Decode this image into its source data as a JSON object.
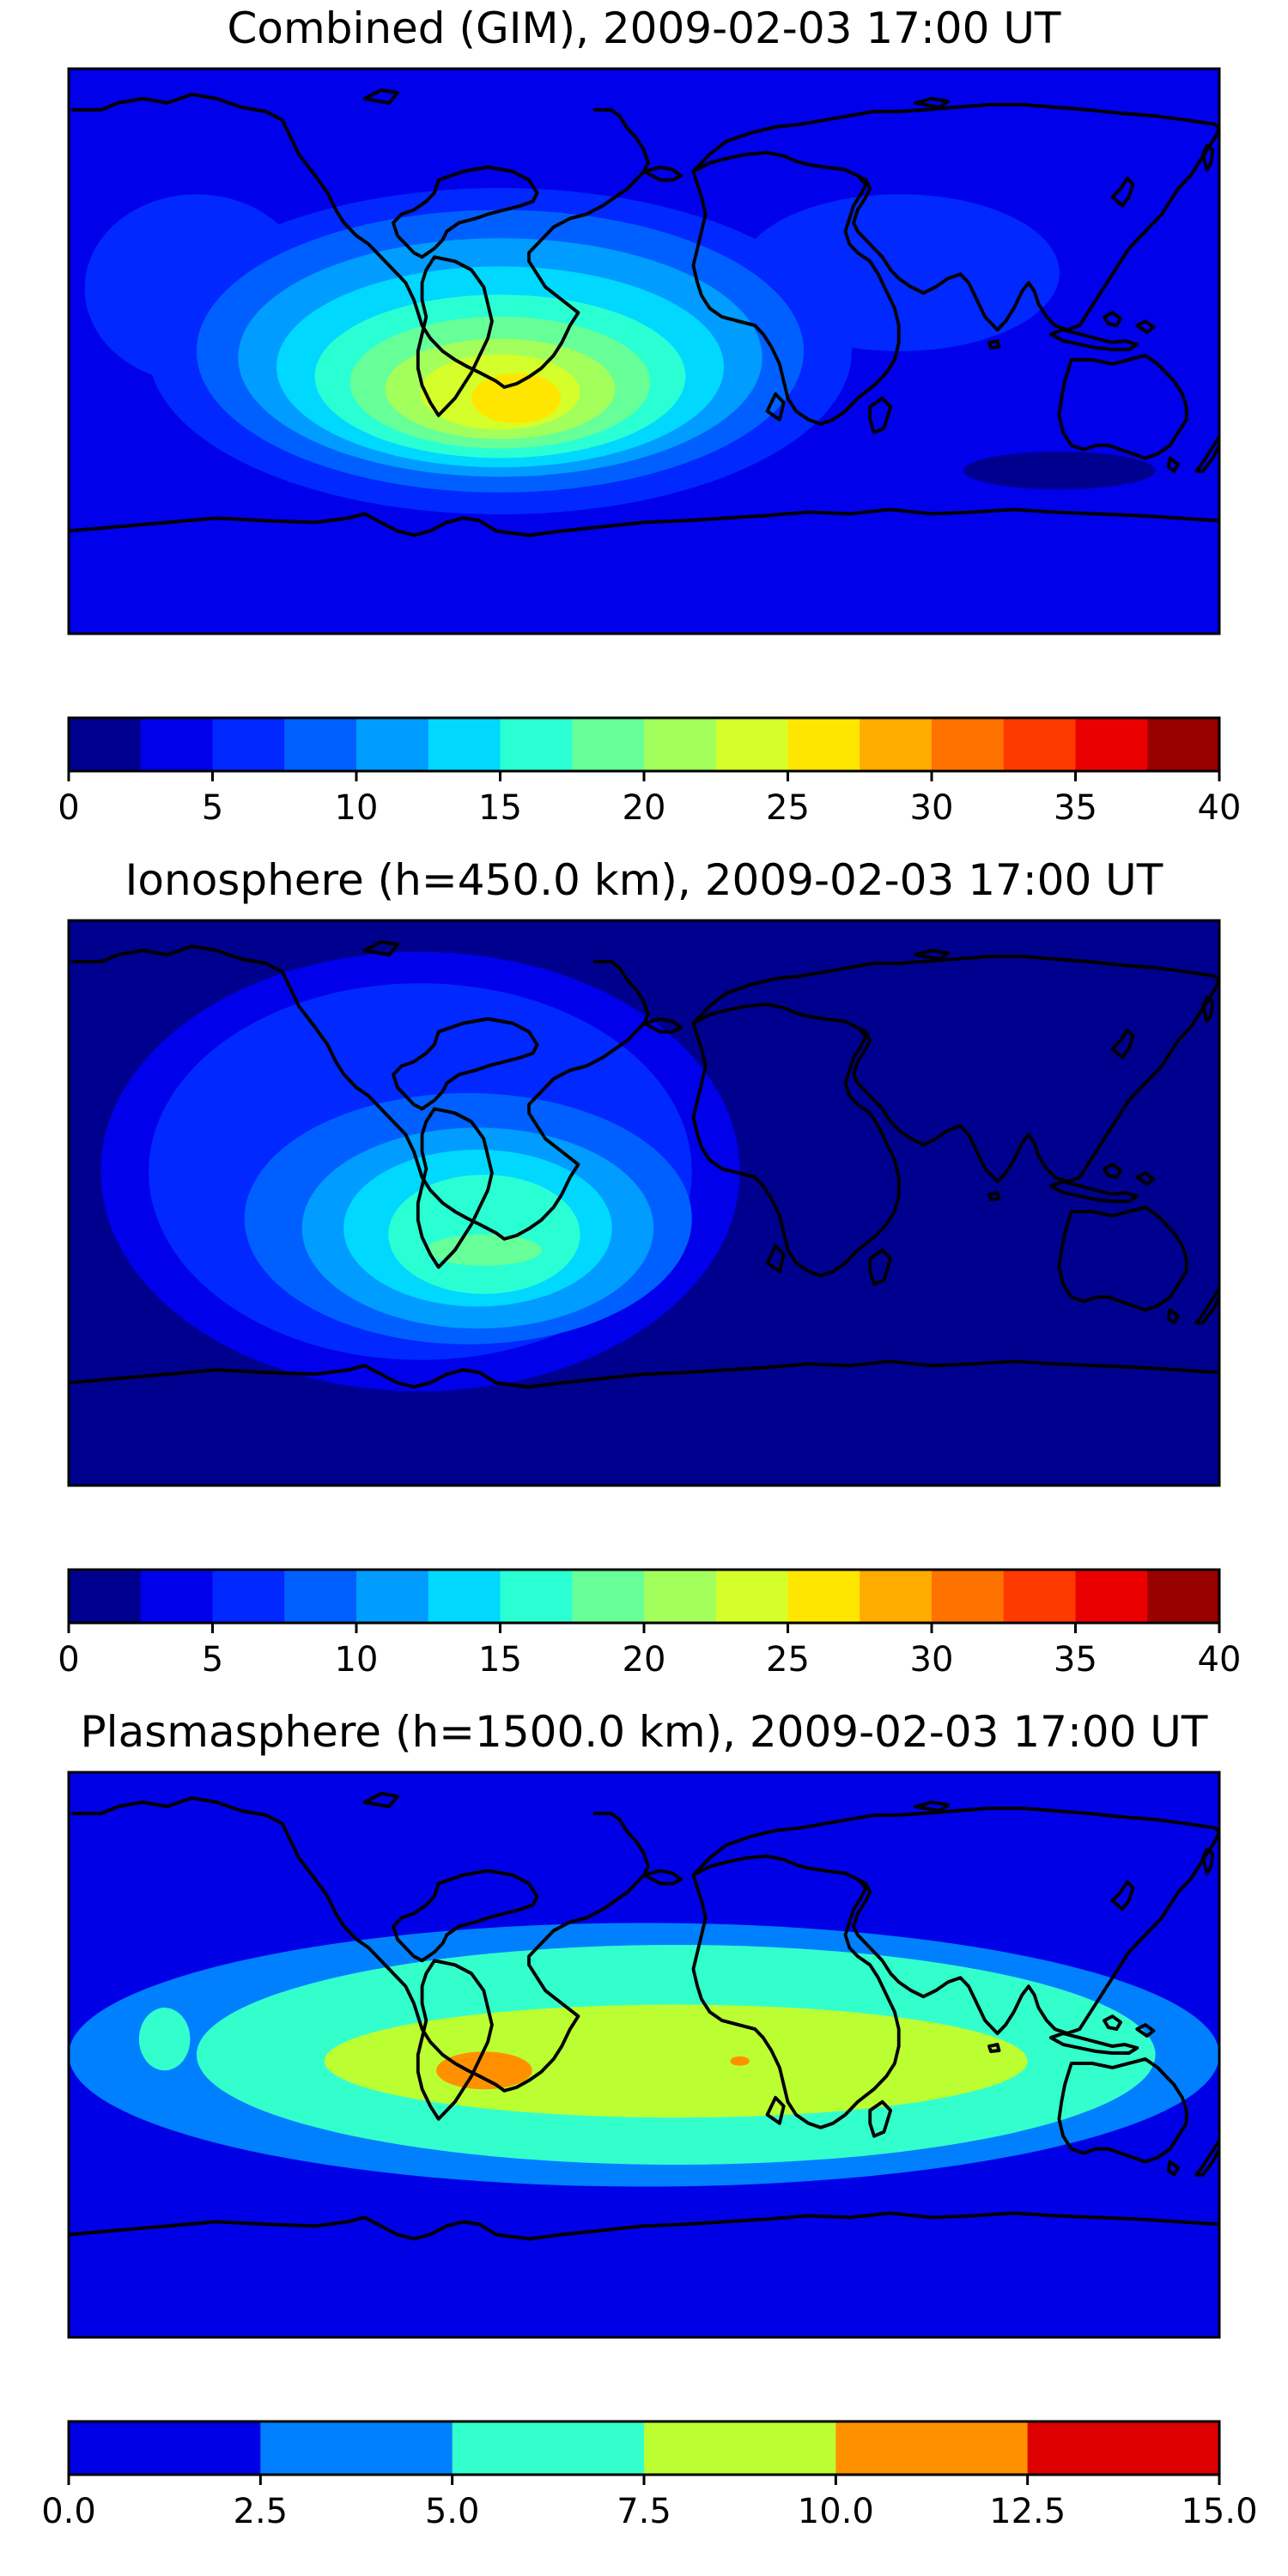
{
  "figure": {
    "panels": [
      {
        "title": "Combined (GIM), 2009-02-03 17:00 UT",
        "colormap": "jet",
        "colorbar": {
          "min": 0,
          "max": 40,
          "step": 2.5,
          "ticks": [
            "0",
            "5",
            "10",
            "15",
            "20",
            "25",
            "30",
            "35",
            "40"
          ],
          "colors": [
            "#00008f",
            "#0000ea",
            "#0028ff",
            "#0060ff",
            "#009cff",
            "#00d8ff",
            "#2affd4",
            "#66ff98",
            "#a2ff5c",
            "#d4ff2a",
            "#ffe600",
            "#ffab00",
            "#ff7200",
            "#ff3a00",
            "#ea0000",
            "#990000"
          ]
        },
        "background_level": 1,
        "features": [
          {
            "lon": -140,
            "lat": 20,
            "rx": 35,
            "ry": 30,
            "level": 2
          },
          {
            "lon": 80,
            "lat": 25,
            "rx": 50,
            "ry": 25,
            "level": 2
          },
          {
            "lon": -45,
            "lat": 0,
            "rx": 110,
            "ry": 52,
            "level": 2
          },
          {
            "lon": -45,
            "lat": 0,
            "rx": 95,
            "ry": 45,
            "level": 3
          },
          {
            "lon": -45,
            "lat": -2,
            "rx": 82,
            "ry": 38,
            "level": 4
          },
          {
            "lon": -45,
            "lat": -5,
            "rx": 70,
            "ry": 32,
            "level": 5
          },
          {
            "lon": -45,
            "lat": -8,
            "rx": 58,
            "ry": 26,
            "level": 6
          },
          {
            "lon": -45,
            "lat": -10,
            "rx": 47,
            "ry": 21,
            "level": 7
          },
          {
            "lon": -45,
            "lat": -12,
            "rx": 36,
            "ry": 16,
            "level": 8
          },
          {
            "lon": -45,
            "lat": -13,
            "rx": 25,
            "ry": 12,
            "level": 9
          },
          {
            "lon": -40,
            "lat": -15,
            "rx": 14,
            "ry": 8,
            "level": 10
          },
          {
            "lon": 130,
            "lat": -38,
            "rx": 30,
            "ry": 6,
            "level": 0
          }
        ]
      },
      {
        "title": "Ionosphere  (h=450.0 km), 2009-02-03 17:00 UT",
        "colormap": "jet",
        "colorbar": {
          "min": 0,
          "max": 40,
          "step": 2.5,
          "ticks": [
            "0",
            "5",
            "10",
            "15",
            "20",
            "25",
            "30",
            "35",
            "40"
          ],
          "colors": [
            "#00008f",
            "#0000ea",
            "#0028ff",
            "#0060ff",
            "#009cff",
            "#00d8ff",
            "#2affd4",
            "#66ff98",
            "#a2ff5c",
            "#d4ff2a",
            "#ffe600",
            "#ffab00",
            "#ff7200",
            "#ff3a00",
            "#ea0000",
            "#990000"
          ]
        },
        "background_level": 0,
        "features": [
          {
            "lon": -70,
            "lat": 10,
            "rx": 100,
            "ry": 70,
            "level": 1
          },
          {
            "lon": -70,
            "lat": 10,
            "rx": 85,
            "ry": 60,
            "level": 2
          },
          {
            "lon": -55,
            "lat": -5,
            "rx": 70,
            "ry": 40,
            "level": 3
          },
          {
            "lon": -52,
            "lat": -8,
            "rx": 55,
            "ry": 32,
            "level": 4
          },
          {
            "lon": -52,
            "lat": -8,
            "rx": 42,
            "ry": 25,
            "level": 5
          },
          {
            "lon": -50,
            "lat": -10,
            "rx": 30,
            "ry": 19,
            "level": 6
          },
          {
            "lon": -50,
            "lat": -15,
            "rx": 18,
            "ry": 5,
            "level": 7
          }
        ]
      },
      {
        "title": "Plasmasphere (h=1500.0 km), 2009-02-03 17:00 UT",
        "colormap": "jet",
        "colorbar": {
          "min": 0.0,
          "max": 15.0,
          "step": 2.5,
          "ticks": [
            "0.0",
            "2.5",
            "5.0",
            "7.5",
            "10.0",
            "12.5",
            "15.0"
          ],
          "colors": [
            "#0000e6",
            "#0080ff",
            "#33ffcc",
            "#bbff33",
            "#ff9100",
            "#dd0000"
          ]
        },
        "background_level": 0,
        "features": [
          {
            "lon": 0,
            "lat": 0,
            "rx": 180,
            "ry": 42,
            "level": 1
          },
          {
            "lon": -150,
            "lat": 5,
            "rx": 8,
            "ry": 10,
            "level": 2
          },
          {
            "lon": 10,
            "lat": 0,
            "rx": 150,
            "ry": 35,
            "level": 2
          },
          {
            "lon": 10,
            "lat": -2,
            "rx": 110,
            "ry": 18,
            "level": 3
          },
          {
            "lon": -50,
            "lat": -5,
            "rx": 15,
            "ry": 6,
            "level": 4
          },
          {
            "lon": 30,
            "lat": -2,
            "rx": 3,
            "ry": 1.5,
            "level": 4
          }
        ]
      }
    ]
  }
}
